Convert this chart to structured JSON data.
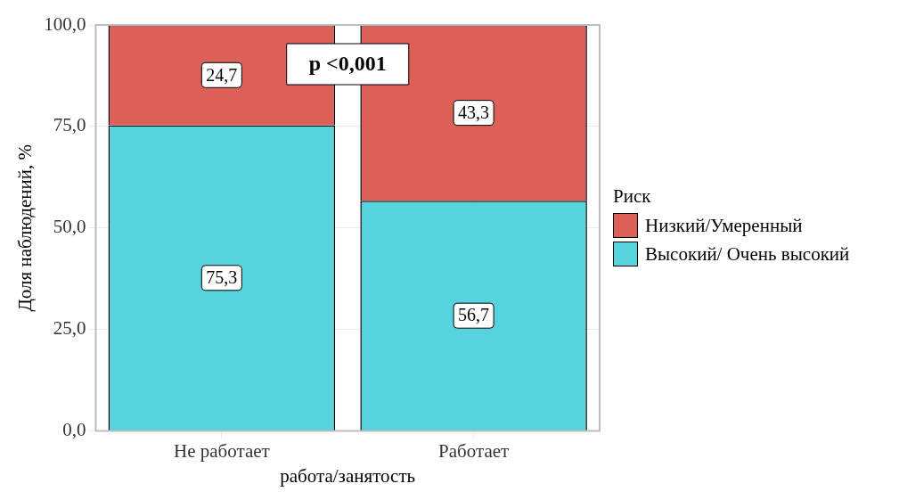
{
  "chart_data": {
    "type": "bar",
    "stacked": true,
    "xlabel": "работа/занятость",
    "ylabel": "Доля наблюдений, %",
    "legend_title": "Риск",
    "legend": "right",
    "grid": true,
    "data_labels": true,
    "categories": [
      "Не работает",
      "Работает"
    ],
    "ylim": [
      0,
      100
    ],
    "yticks": [
      {
        "value": 0,
        "label": "0,0"
      },
      {
        "value": 25,
        "label": "25,0"
      },
      {
        "value": 50,
        "label": "50,0"
      },
      {
        "value": 75,
        "label": "75,0"
      },
      {
        "value": 100,
        "label": "100,0"
      }
    ],
    "series": [
      {
        "name": "Высокий/ Очень высокий",
        "color": "#56d3dc",
        "values": [
          75.3,
          56.7
        ],
        "value_labels": [
          "75,3",
          "56,7"
        ]
      },
      {
        "name": "Низкий/Умеренный",
        "color": "#dc5f58",
        "values": [
          24.7,
          43.3
        ],
        "value_labels": [
          "24,7",
          "43,3"
        ]
      }
    ],
    "annotations": [
      "p <0,001"
    ]
  }
}
